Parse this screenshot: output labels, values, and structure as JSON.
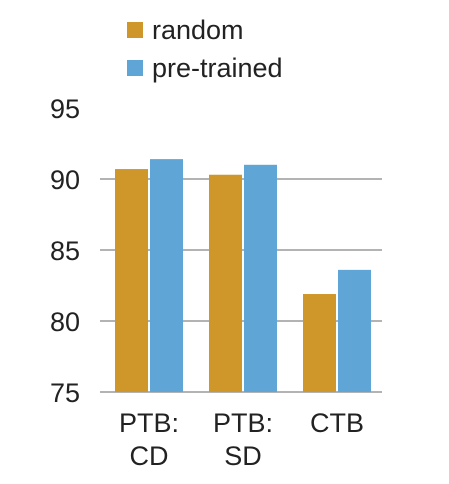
{
  "chart_data": {
    "type": "bar",
    "categories": [
      [
        "PTB:",
        "CD"
      ],
      [
        "PTB:",
        "SD"
      ],
      [
        "CTB"
      ]
    ],
    "series": [
      {
        "name": "random",
        "color": "#CF962A",
        "values": [
          90.7,
          90.3,
          81.9
        ]
      },
      {
        "name": "pre-trained",
        "color": "#5FA5D6",
        "values": [
          91.4,
          91.0,
          83.6
        ]
      }
    ],
    "yticks": [
      "95",
      "90",
      "85",
      "80",
      "75"
    ],
    "ylim": [
      75,
      95
    ],
    "grid": true,
    "legend_position": "top"
  }
}
